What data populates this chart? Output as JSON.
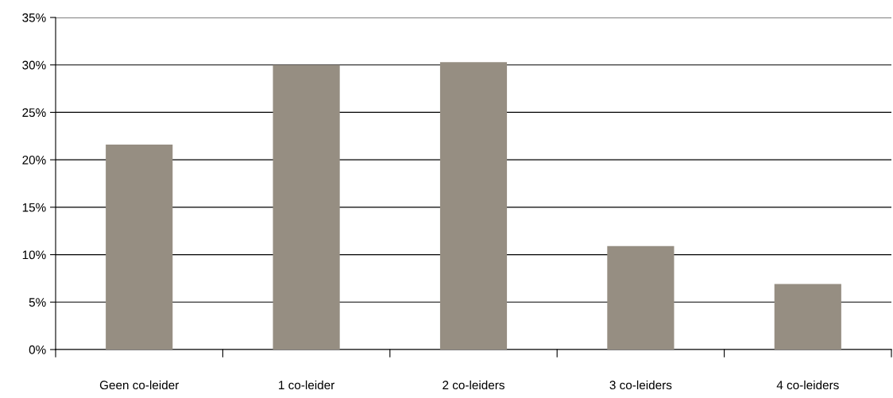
{
  "chart_data": {
    "type": "bar",
    "categories": [
      "Geen co-leider",
      "1 co-leider",
      "2 co-leiders",
      "3 co-leiders",
      "4 co-leiders"
    ],
    "values": [
      21.6,
      30.0,
      30.3,
      10.9,
      6.9
    ],
    "color": "#968e82",
    "ylim": [
      0,
      35
    ],
    "yticks": [
      {
        "value": 0,
        "label": "0%"
      },
      {
        "value": 5,
        "label": "5%"
      },
      {
        "value": 10,
        "label": "10%"
      },
      {
        "value": 15,
        "label": "15%"
      },
      {
        "value": 20,
        "label": "20%"
      },
      {
        "value": 25,
        "label": "25%"
      },
      {
        "value": 30,
        "label": "30%"
      },
      {
        "value": 35,
        "label": "35%"
      }
    ],
    "grid": "y",
    "legend": false
  }
}
